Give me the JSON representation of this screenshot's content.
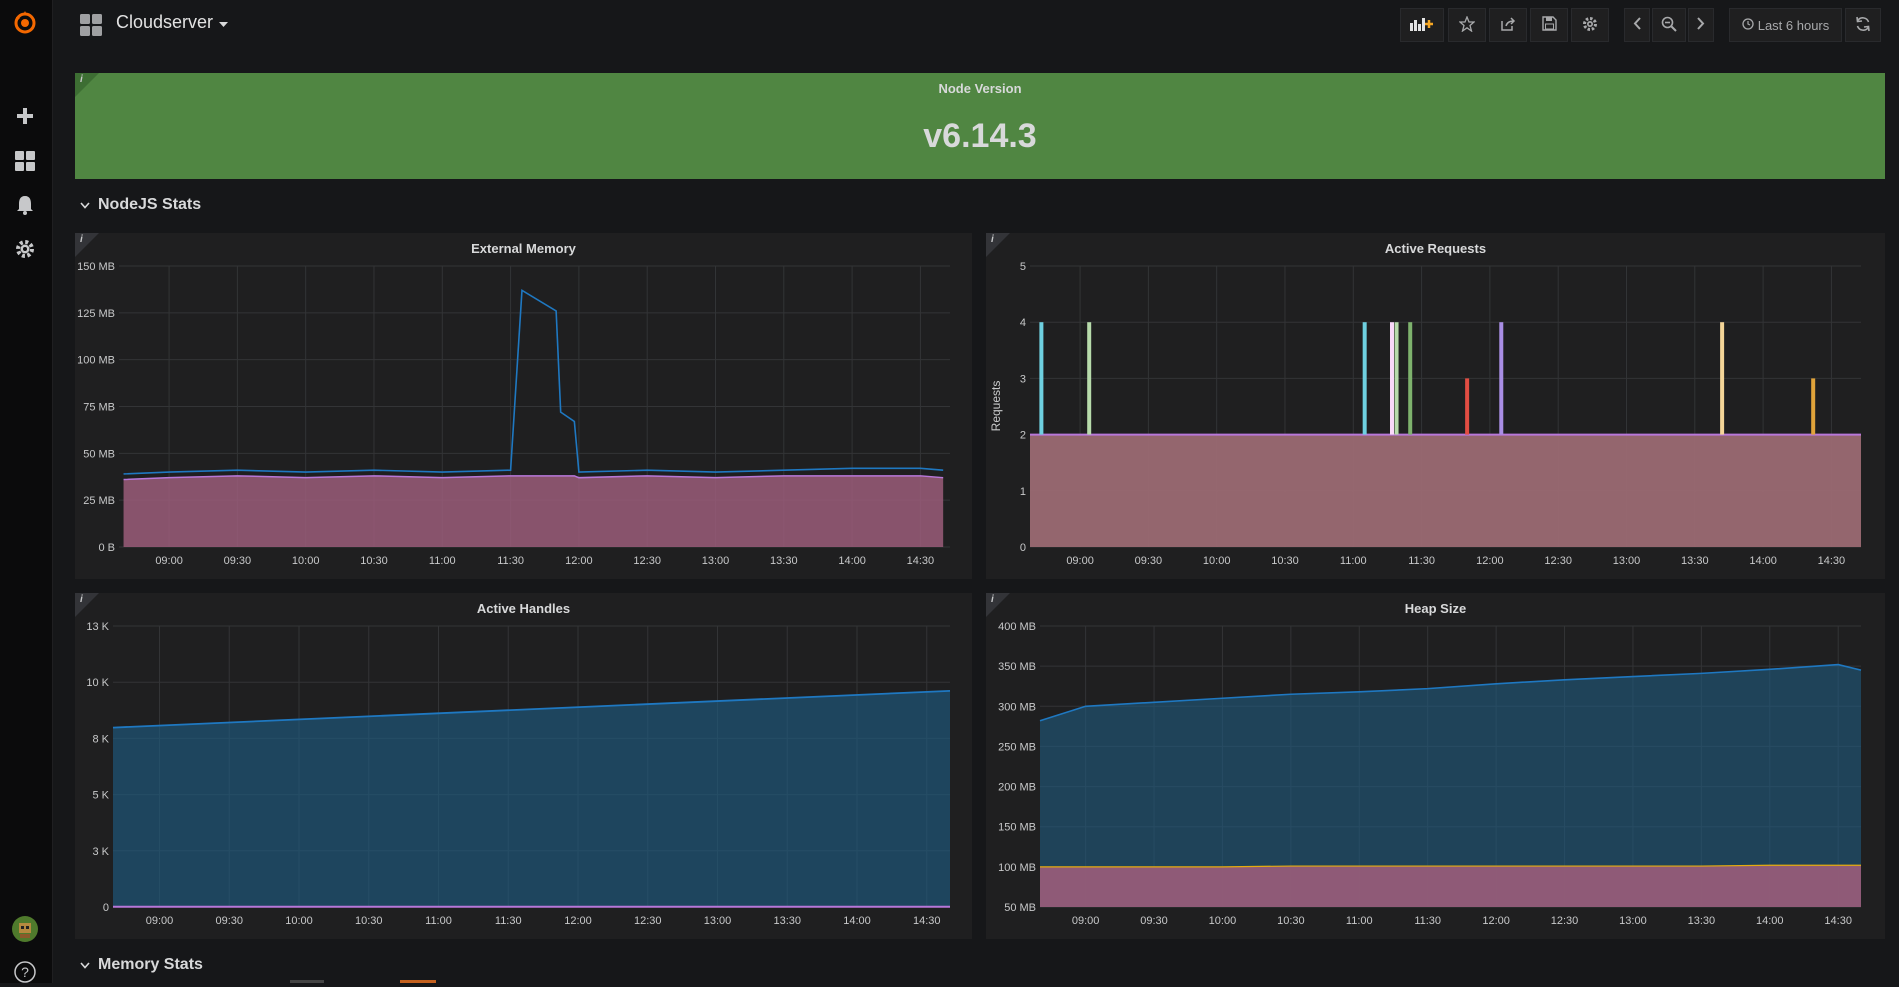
{
  "dashboard": {
    "title": "Cloudserver"
  },
  "toolbar": {
    "time_range": "Last 6 hours",
    "icons": [
      "add-panel-icon",
      "star-icon",
      "share-icon",
      "save-icon",
      "gear-icon",
      "chevron-left-icon",
      "zoom-out-icon",
      "chevron-right-icon",
      "clock-icon",
      "refresh-icon"
    ]
  },
  "sidebar": {
    "icons": [
      "grafana-logo-icon",
      "plus-icon",
      "dashboards-icon",
      "bell-icon",
      "gear-icon",
      "avatar-icon",
      "help-icon"
    ],
    "help_label": "?"
  },
  "singlestat": {
    "title": "Node Version",
    "value": "v6.14.3",
    "color": "#508642"
  },
  "rows": [
    {
      "title": "NodeJS Stats"
    },
    {
      "title": "Memory Stats"
    }
  ],
  "panels": {
    "external_memory": {
      "title": "External Memory",
      "y_ticks": [
        "150 MB",
        "125 MB",
        "100 MB",
        "75 MB",
        "50 MB",
        "25 MB",
        "0 B"
      ],
      "x_ticks": [
        "09:00",
        "09:30",
        "10:00",
        "10:30",
        "11:00",
        "11:30",
        "12:00",
        "12:30",
        "13:00",
        "13:30",
        "14:00",
        "14:30"
      ]
    },
    "active_requests": {
      "title": "Active Requests",
      "ylabel": "Requests",
      "y_ticks": [
        "5",
        "4",
        "3",
        "2",
        "1",
        "0"
      ],
      "x_ticks": [
        "09:00",
        "09:30",
        "10:00",
        "10:30",
        "11:00",
        "11:30",
        "12:00",
        "12:30",
        "13:00",
        "13:30",
        "14:00",
        "14:30"
      ]
    },
    "active_handles": {
      "title": "Active Handles",
      "y_ticks": [
        "13 K",
        "10 K",
        "8 K",
        "5 K",
        "3 K",
        "0"
      ],
      "x_ticks": [
        "09:00",
        "09:30",
        "10:00",
        "10:30",
        "11:00",
        "11:30",
        "12:00",
        "12:30",
        "13:00",
        "13:30",
        "14:00",
        "14:30"
      ]
    },
    "heap_size": {
      "title": "Heap Size",
      "y_ticks": [
        "400 MB",
        "350 MB",
        "300 MB",
        "250 MB",
        "200 MB",
        "150 MB",
        "100 MB",
        "50 MB"
      ],
      "x_ticks": [
        "09:00",
        "09:30",
        "10:00",
        "10:30",
        "11:00",
        "11:30",
        "12:00",
        "12:30",
        "13:00",
        "13:30",
        "14:00",
        "14:30"
      ]
    }
  },
  "chart_data": [
    {
      "type": "area",
      "title": "External Memory",
      "x": [
        "08:40",
        "09:00",
        "09:30",
        "10:00",
        "10:30",
        "11:00",
        "11:30",
        "11:35",
        "11:50",
        "11:52",
        "11:58",
        "12:00",
        "12:30",
        "13:00",
        "13:30",
        "14:00",
        "14:30",
        "14:40"
      ],
      "series": [
        {
          "values": [
            36,
            37,
            38,
            37,
            38,
            37,
            38,
            38,
            38,
            38,
            38,
            37,
            38,
            37,
            38,
            38,
            38,
            37
          ]
        },
        {
          "values": [
            39,
            40,
            41,
            40,
            41,
            40,
            41,
            137,
            126,
            72,
            67,
            40,
            41,
            40,
            41,
            42,
            42,
            41
          ]
        }
      ],
      "ylim": [
        0,
        150
      ]
    },
    {
      "type": "bar",
      "title": "Active Requests",
      "ylabel": "Requests",
      "x": [
        "08:43",
        "09:04",
        "11:05",
        "11:17",
        "11:19",
        "11:25",
        "11:50",
        "12:05",
        "13:42",
        "14:22"
      ],
      "series": [
        {
          "values": [
            4,
            4,
            4,
            4,
            4,
            4,
            3,
            4,
            4,
            3
          ]
        }
      ],
      "baseline": 2,
      "ylim": [
        0,
        5
      ]
    },
    {
      "type": "area",
      "title": "Active Handles",
      "x": [
        "08:40",
        "14:40"
      ],
      "series": [
        {
          "values": [
            8300,
            10000
          ]
        },
        {
          "values": [
            10,
            10
          ]
        }
      ],
      "ylim": [
        0,
        13000
      ]
    },
    {
      "type": "area",
      "title": "Heap Size",
      "x": [
        "08:40",
        "09:00",
        "09:30",
        "10:00",
        "10:30",
        "11:00",
        "11:30",
        "12:00",
        "12:30",
        "13:00",
        "13:30",
        "14:00",
        "14:30",
        "14:40"
      ],
      "series": [
        {
          "values": [
            282,
            300,
            305,
            310,
            315,
            318,
            322,
            328,
            333,
            337,
            341,
            346,
            352,
            345
          ]
        },
        {
          "values": [
            100,
            100,
            100,
            100,
            101,
            101,
            101,
            101,
            101,
            101,
            101,
            102,
            102,
            102
          ]
        }
      ],
      "ylim": [
        50,
        400
      ]
    }
  ]
}
